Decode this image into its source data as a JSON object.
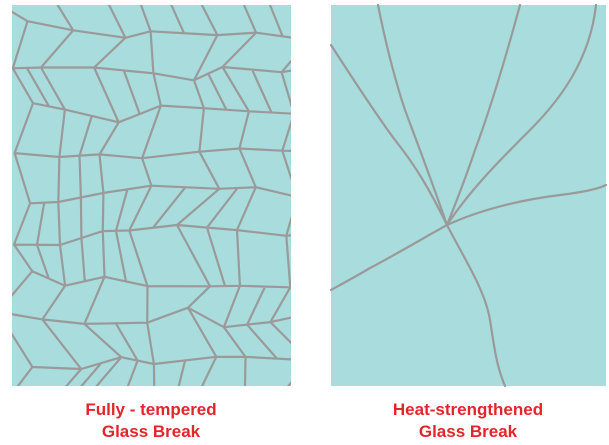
{
  "panels": [
    {
      "caption": [
        "Fully - tempered",
        "Glass Break"
      ]
    },
    {
      "caption": [
        "Heat-strengthened",
        "Glass Break"
      ]
    }
  ]
}
